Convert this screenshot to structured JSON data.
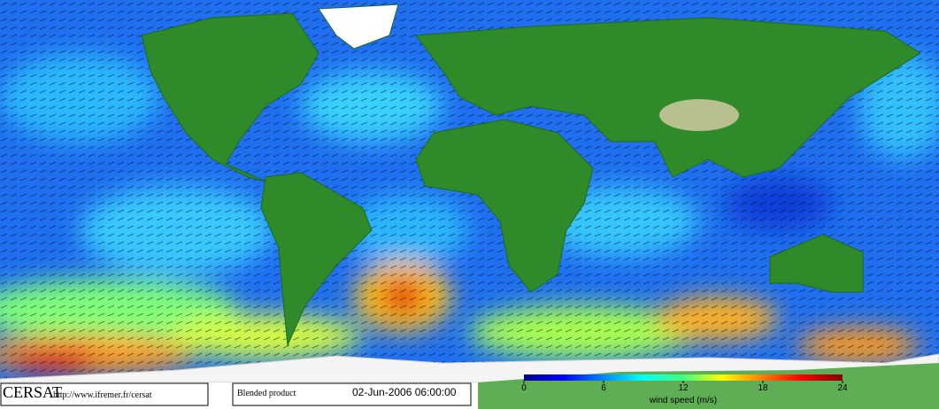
{
  "footer": {
    "brand": "CERSAT",
    "url": "http://www.ifremer.fr/cersat",
    "product": "Blended product",
    "date": "02-Jun-2006 06:00:00"
  },
  "colorbar": {
    "label": "wind speed (m/s)",
    "lim": [
      0,
      24
    ],
    "ticks": [
      0,
      6,
      12,
      18,
      24
    ]
  }
}
